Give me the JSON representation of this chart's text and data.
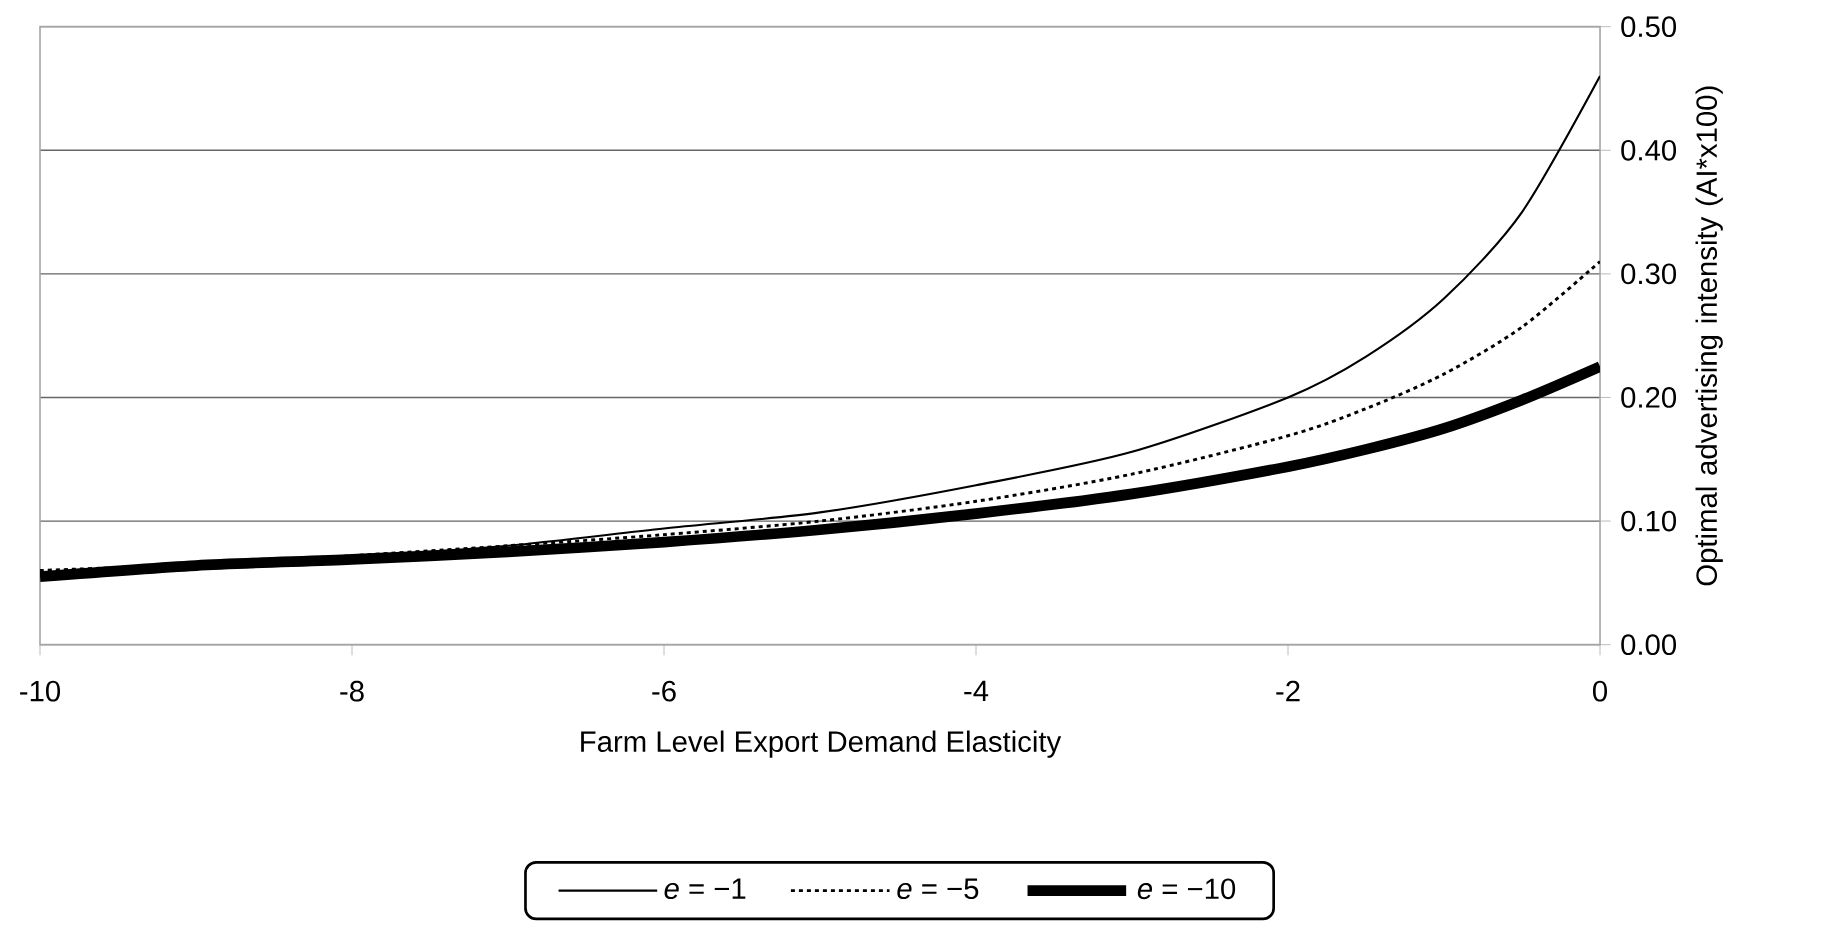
{
  "chart_data": {
    "type": "line",
    "xlabel": "Farm Level Export Demand Elasticity",
    "ylabel": "Optimal advertising intensity (AI*x100)",
    "x": [
      -10,
      -9,
      -8,
      -7,
      -6,
      -5,
      -4,
      -3,
      -2,
      -1.5,
      -1,
      -0.5,
      0
    ],
    "series": [
      {
        "name": "*e* = −1",
        "color": "#000000",
        "line_style": "solid",
        "values": [
          0.058,
          0.064,
          0.071,
          0.08,
          0.094,
          0.107,
          0.129,
          0.156,
          0.2,
          0.233,
          0.28,
          0.35,
          0.46
        ]
      },
      {
        "name": "*e* = −5",
        "color": "#000000",
        "line_style": "dotted",
        "values": [
          0.06,
          0.065,
          0.072,
          0.08,
          0.089,
          0.1,
          0.116,
          0.138,
          0.169,
          0.191,
          0.219,
          0.257,
          0.31
        ]
      },
      {
        "name": "*e* = −10",
        "color": "#000000",
        "line_style": "solid",
        "values": [
          0.055,
          0.064,
          0.069,
          0.075,
          0.083,
          0.093,
          0.106,
          0.122,
          0.144,
          0.158,
          0.175,
          0.198,
          0.225
        ]
      }
    ],
    "xlim": [
      -10,
      0
    ],
    "xticks": [
      -10,
      -8,
      -6,
      -4,
      -2,
      0
    ],
    "ylim": [
      0,
      0.5
    ],
    "yticks": [
      {
        "value": 0,
        "label": "0.00"
      },
      {
        "value": 0.1,
        "label": "0.10"
      },
      {
        "value": 0.2,
        "label": "0.20"
      },
      {
        "value": 0.3,
        "label": "0.30"
      },
      {
        "value": 0.4,
        "label": "0.40"
      },
      {
        "value": 0.5,
        "label": "0.50"
      }
    ],
    "grid": "y",
    "legend": "bottom"
  }
}
